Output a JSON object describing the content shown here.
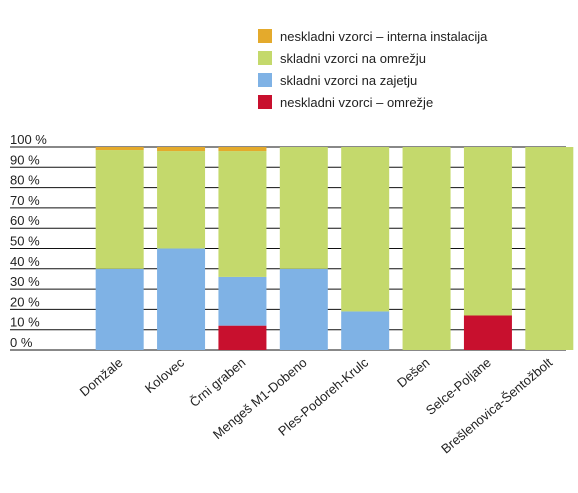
{
  "chart_data": {
    "type": "stacked_bar",
    "categories": [
      "Domžale",
      "Kolovec",
      "Črni graben",
      "Mengeš M1-Dobeno",
      "Ples-Podoreh-Krulc",
      "Dešen",
      "Selce-Poljane",
      "Brešlenovica-Šentožbolt"
    ],
    "series": [
      {
        "name": "neskladni vzorci – omrežje",
        "color": "#c8102e",
        "values": [
          0,
          0,
          12,
          0,
          0,
          0,
          17,
          0
        ]
      },
      {
        "name": "skladni vzorci na zajetju",
        "color": "#7fb2e5",
        "values": [
          40,
          50,
          24,
          40,
          19,
          0,
          0,
          0
        ]
      },
      {
        "name": "skladni vzorci na omrežju",
        "color": "#c4d96c",
        "values": [
          58.5,
          48,
          62,
          60,
          81,
          100,
          83,
          100
        ]
      },
      {
        "name": "neskladni vzorci – interna instalacija",
        "color": "#e4aa2c",
        "values": [
          1.5,
          2,
          2,
          0,
          0,
          0,
          0,
          0
        ]
      }
    ],
    "ylim": [
      0,
      100
    ],
    "yticks": [
      {
        "value": 0,
        "label": "0 %"
      },
      {
        "value": 10,
        "label": "10 %"
      },
      {
        "value": 20,
        "label": "20 %"
      },
      {
        "value": 30,
        "label": "30 %"
      },
      {
        "value": 40,
        "label": "40 %"
      },
      {
        "value": 50,
        "label": "50 %"
      },
      {
        "value": 60,
        "label": "60 %"
      },
      {
        "value": 70,
        "label": "70 %"
      },
      {
        "value": 80,
        "label": "80 %"
      },
      {
        "value": 90,
        "label": "90 %"
      },
      {
        "value": 100,
        "label": "100 %"
      }
    ],
    "grid": true
  }
}
